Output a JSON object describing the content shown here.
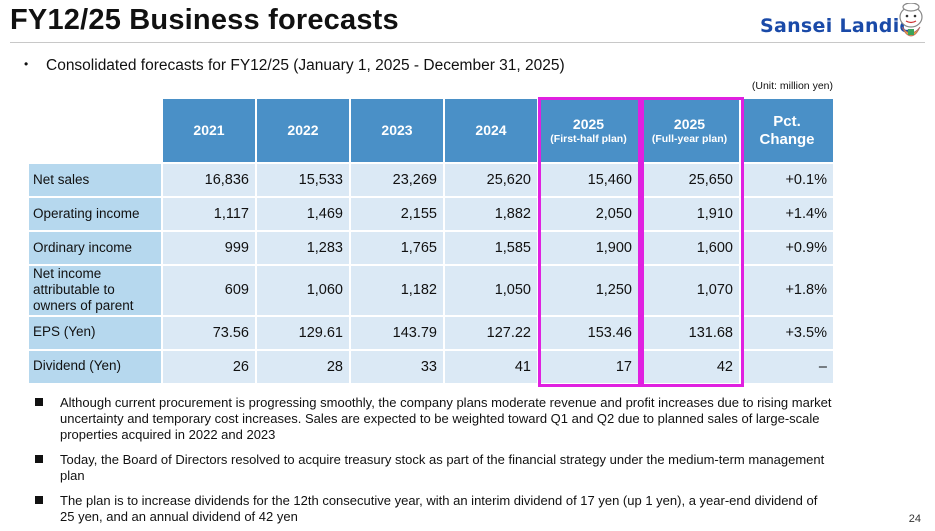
{
  "slide": {
    "title": "FY12/25 Business forecasts",
    "logo_text": "Sansei Landic",
    "bullet": "Consolidated forecasts for FY12/25 (January 1, 2025 - December 31, 2025)",
    "unit": "(Unit: million yen)",
    "page_number": "24"
  },
  "table": {
    "headers": [
      {
        "line1": "2021",
        "line2": ""
      },
      {
        "line1": "2022",
        "line2": ""
      },
      {
        "line1": "2023",
        "line2": ""
      },
      {
        "line1": "2024",
        "line2": ""
      },
      {
        "line1": "2025",
        "line2": "(First-half plan)"
      },
      {
        "line1": "2025",
        "line2": "(Full-year plan)"
      },
      {
        "line1": "Pct.",
        "line2": "Change"
      }
    ],
    "rows": [
      {
        "label": "Net sales",
        "values": [
          "16,836",
          "15,533",
          "23,269",
          "25,620",
          "15,460",
          "25,650",
          "+0.1%"
        ]
      },
      {
        "label": "Operating income",
        "values": [
          "1,117",
          "1,469",
          "2,155",
          "1,882",
          "2,050",
          "1,910",
          "+1.4%"
        ]
      },
      {
        "label": "Ordinary income",
        "values": [
          "999",
          "1,283",
          "1,765",
          "1,585",
          "1,900",
          "1,600",
          "+0.9%"
        ]
      },
      {
        "label": "Net income attributable to owners of parent",
        "values": [
          "609",
          "1,060",
          "1,182",
          "1,050",
          "1,250",
          "1,070",
          "+1.8%"
        ]
      },
      {
        "label": "EPS (Yen)",
        "values": [
          "73.56",
          "129.61",
          "143.79",
          "127.22",
          "153.46",
          "131.68",
          "+3.5%"
        ]
      },
      {
        "label": "Dividend (Yen)",
        "values": [
          "26",
          "28",
          "33",
          "41",
          "17",
          "42",
          "–"
        ]
      }
    ]
  },
  "notes": [
    "Although current procurement is progressing smoothly, the company plans moderate revenue and profit increases due to rising market uncertainty and temporary cost increases. Sales are expected to be weighted toward Q1 and Q2 due to planned sales of large-scale properties acquired in 2022 and 2023",
    "Today, the Board of Directors resolved to acquire treasury stock as part of the financial strategy under the medium-term management plan",
    "The plan is to increase dividends for the 12th consecutive year, with an interim dividend of 17 yen (up 1 yen), a year-end dividend of 25 yen, and an annual dividend of 42 yen"
  ],
  "colors": {
    "header_blue": "#4a90c7",
    "label_blue": "#b6d8ee",
    "cell_blue": "#dbe9f5",
    "highlight_magenta": "#e020e0",
    "logo_blue": "#1a4aa8"
  }
}
